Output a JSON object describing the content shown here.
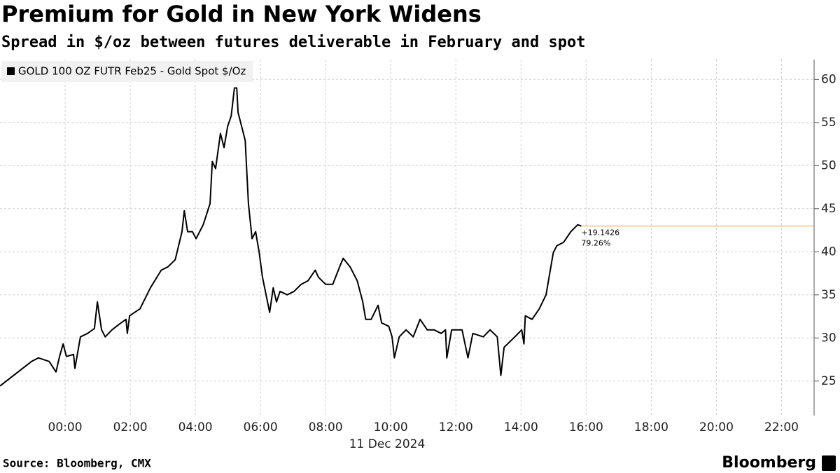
{
  "chart_data": {
    "type": "line",
    "title": "Premium for Gold in New York Widens",
    "subtitle": "Spread in $/oz between futures deliverable in February and spot",
    "x_label": "11 Dec 2024",
    "source": "Source: Bloomberg, CMX",
    "brand": "Bloomberg",
    "legend": "top-left",
    "grid": true,
    "xlim": [
      -2,
      23
    ],
    "xticks": [
      {
        "value": 0,
        "label": "00:00"
      },
      {
        "value": 2,
        "label": "02:00"
      },
      {
        "value": 4,
        "label": "04:00"
      },
      {
        "value": 6,
        "label": "06:00"
      },
      {
        "value": 8,
        "label": "08:00"
      },
      {
        "value": 10,
        "label": "10:00"
      },
      {
        "value": 12,
        "label": "12:00"
      },
      {
        "value": 14,
        "label": "14:00"
      },
      {
        "value": 16,
        "label": "16:00"
      },
      {
        "value": 18,
        "label": "18:00"
      },
      {
        "value": 20,
        "label": "20:00"
      },
      {
        "value": 22,
        "label": "22:00"
      }
    ],
    "ylim": [
      21,
      62.3
    ],
    "yticks": [
      25,
      30,
      35,
      40,
      45,
      50,
      55,
      60
    ],
    "x": [
      -2.0,
      -1.03,
      -0.82,
      -0.49,
      -0.28,
      -0.17,
      -0.06,
      0.04,
      0.26,
      0.3,
      0.47,
      0.69,
      0.9,
      0.99,
      1.12,
      1.23,
      1.44,
      1.66,
      1.87,
      1.91,
      1.98,
      2.3,
      2.62,
      2.95,
      3.16,
      3.38,
      3.59,
      3.66,
      3.76,
      3.91,
      4.02,
      4.24,
      4.45,
      4.52,
      4.62,
      4.77,
      4.88,
      4.99,
      5.1,
      5.2,
      5.27,
      5.31,
      5.42,
      5.53,
      5.63,
      5.74,
      5.85,
      5.96,
      6.06,
      6.17,
      6.28,
      6.39,
      6.49,
      6.6,
      6.82,
      7.03,
      7.25,
      7.46,
      7.68,
      7.78,
      8.0,
      8.22,
      8.43,
      8.54,
      8.75,
      8.97,
      9.14,
      9.23,
      9.4,
      9.61,
      9.72,
      9.94,
      10.04,
      10.11,
      10.26,
      10.47,
      10.69,
      10.9,
      11.12,
      11.33,
      11.55,
      11.68,
      11.72,
      11.87,
      12.19,
      12.37,
      12.52,
      12.84,
      13.05,
      13.27,
      13.38,
      13.48,
      13.81,
      14.02,
      14.09,
      14.13,
      14.34,
      14.56,
      14.77,
      14.99,
      15.1,
      15.31,
      15.53,
      15.74,
      15.85
    ],
    "series": [
      {
        "name": "GOLD 100 OZ FUTR Feb25 - Gold Spot $/Oz",
        "color": "#000000",
        "values": [
          24.43,
          27.28,
          27.69,
          27.28,
          26.06,
          27.85,
          29.31,
          27.85,
          28.09,
          26.46,
          30.13,
          30.53,
          31.1,
          34.19,
          30.94,
          30.13,
          30.94,
          31.59,
          32.16,
          30.53,
          32.57,
          33.38,
          35.82,
          37.86,
          38.26,
          39.08,
          42.33,
          44.77,
          42.33,
          42.33,
          41.52,
          43.14,
          45.59,
          50.47,
          49.65,
          53.72,
          52.1,
          54.54,
          55.76,
          59.01,
          59.01,
          56.16,
          54.54,
          52.91,
          45.59,
          41.52,
          42.33,
          39.89,
          37.04,
          35.01,
          32.97,
          35.82,
          34.19,
          35.41,
          35.01,
          35.41,
          36.23,
          36.64,
          37.86,
          37.04,
          36.23,
          36.23,
          38.26,
          39.24,
          38.26,
          36.64,
          34.19,
          32.16,
          32.16,
          33.79,
          31.75,
          31.35,
          30.13,
          27.69,
          30.13,
          30.94,
          30.13,
          32.16,
          30.94,
          30.94,
          30.53,
          30.94,
          27.69,
          30.94,
          30.94,
          27.69,
          30.53,
          30.13,
          30.94,
          30.13,
          25.65,
          28.91,
          30.13,
          30.94,
          29.31,
          32.57,
          32.16,
          33.38,
          35.01,
          39.89,
          40.7,
          41.11,
          42.33,
          43.14,
          42.98
        ]
      }
    ],
    "annotation": {
      "color": "#e0a030",
      "change": "+19.1426",
      "percent": "79.26%"
    }
  }
}
